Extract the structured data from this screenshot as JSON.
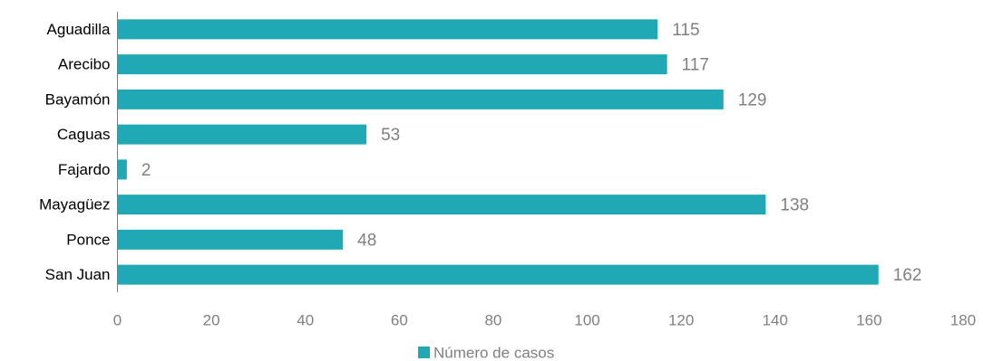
{
  "chart_data": {
    "type": "bar",
    "orientation": "horizontal",
    "categories": [
      "Aguadilla",
      "Arecibo",
      "Bayamón",
      "Caguas",
      "Fajardo",
      "Mayagüez",
      "Ponce",
      "San Juan"
    ],
    "series": [
      {
        "name": "Número de casos",
        "values": [
          115,
          117,
          129,
          53,
          2,
          138,
          48,
          162
        ],
        "color": "#20a9b4"
      }
    ],
    "xlim": [
      0,
      180
    ],
    "xticks": [
      0,
      20,
      40,
      60,
      80,
      100,
      120,
      140,
      160,
      180
    ],
    "grid": false,
    "legend_position": "bottom",
    "data_labels": true
  }
}
